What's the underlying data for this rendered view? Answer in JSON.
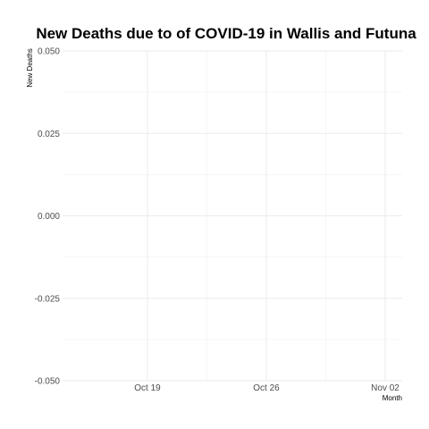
{
  "chart_data": {
    "type": "line",
    "title": "New Deaths due to of COVID-19 in Wallis and Futuna",
    "xlabel": "Month",
    "ylabel": "New Deaths",
    "x_ticks": [
      "Oct 19",
      "Oct 26",
      "Nov 02"
    ],
    "y_ticks": [
      "0.050",
      "0.025",
      "0.000",
      "-0.025",
      "-0.050"
    ],
    "y_tick_values": [
      0.05,
      0.025,
      0,
      -0.025,
      -0.05
    ],
    "ylim": [
      -0.05,
      0.05
    ],
    "xlim": [
      "2020-10-14",
      "2020-11-03"
    ],
    "x_tick_dates": [
      "2020-10-19",
      "2020-10-26",
      "2020-11-02"
    ],
    "grid": true,
    "series": []
  }
}
